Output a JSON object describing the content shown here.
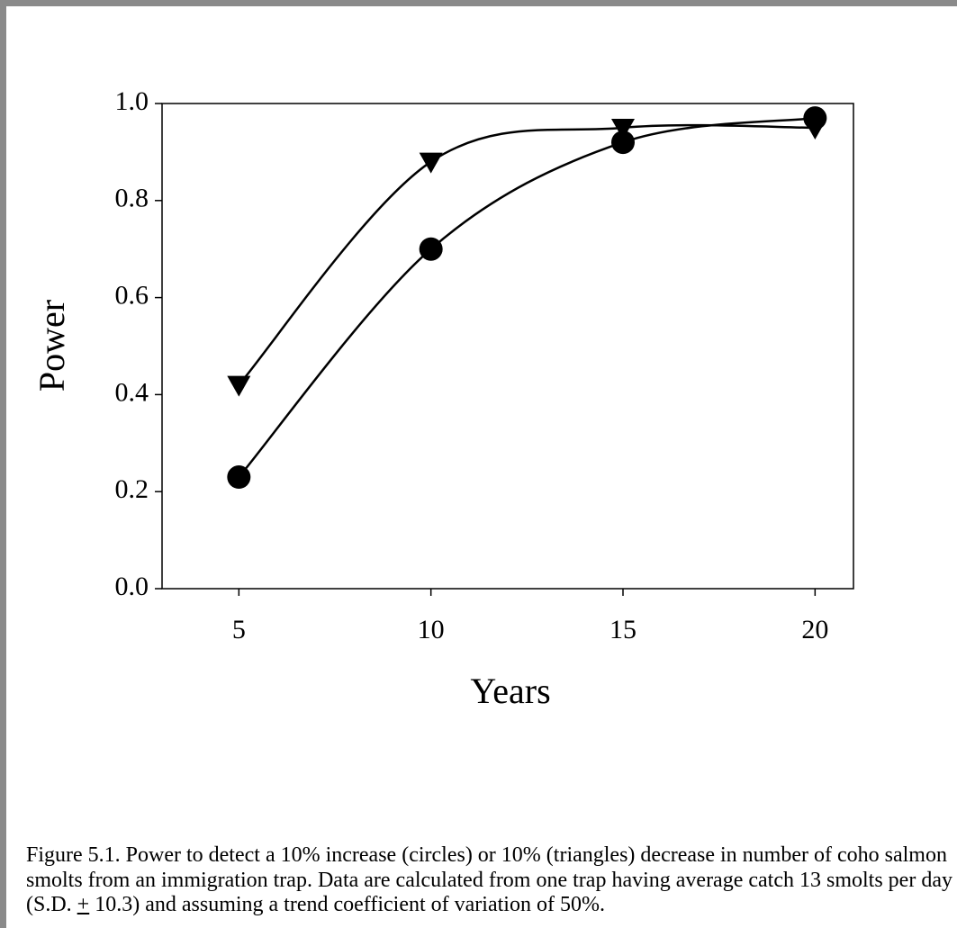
{
  "chart_data": {
    "type": "line",
    "x": [
      5,
      10,
      15,
      20
    ],
    "series": [
      {
        "name": "circles",
        "color": "#000000",
        "marker": "circle",
        "values": [
          0.23,
          0.7,
          0.92,
          0.97
        ]
      },
      {
        "name": "triangles",
        "color": "#000000",
        "marker": "triangle-down",
        "values": [
          0.42,
          0.88,
          0.95,
          0.95
        ]
      }
    ],
    "xlim": [
      3,
      21
    ],
    "xticks": [
      5,
      10,
      15,
      20
    ],
    "ylim": [
      0,
      1
    ],
    "yticks": [
      {
        "value": 0,
        "label": "0.0"
      },
      {
        "value": 0.2,
        "label": "0.2"
      },
      {
        "value": 0.4,
        "label": "0.4"
      },
      {
        "value": 0.6,
        "label": "0.6"
      },
      {
        "value": 0.8,
        "label": "0.8"
      },
      {
        "value": 1,
        "label": "1.0"
      }
    ],
    "xlabel": "Years",
    "ylabel": "Power",
    "grid": false,
    "caption": [
      "Figure 5.1.  Power to detect a 10% increase (circles) or 10% (triangles) decrease in number of coho salmon smolts from an immigration trap.  Data are calculated from one trap having average catch 13 smolts per day (S.D. ",
      "+",
      " 10.3) and assuming a trend coefficient of variation of 50%."
    ]
  }
}
